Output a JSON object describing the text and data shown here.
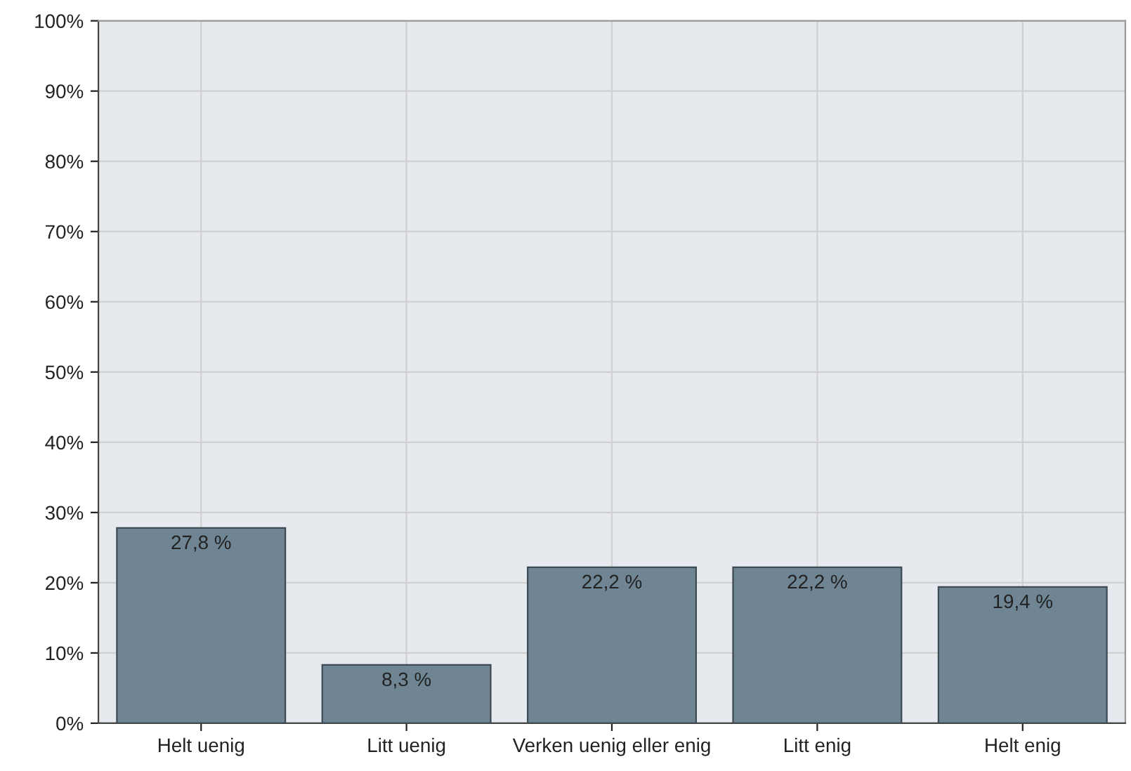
{
  "chart_data": {
    "type": "bar",
    "categories": [
      "Helt uenig",
      "Litt uenig",
      "Verken uenig eller enig",
      "Litt enig",
      "Helt enig"
    ],
    "values": [
      27.8,
      8.3,
      22.2,
      22.2,
      19.4
    ],
    "value_labels": [
      "27,8 %",
      "8,3 %",
      "22,2 %",
      "22,2 %",
      "19,4 %"
    ],
    "color": "#6f8593",
    "ylim": [
      0,
      100
    ],
    "yticks": [
      {
        "value": 0,
        "label": "0%"
      },
      {
        "value": 10,
        "label": "10%"
      },
      {
        "value": 20,
        "label": "20%"
      },
      {
        "value": 30,
        "label": "30%"
      },
      {
        "value": 40,
        "label": "40%"
      },
      {
        "value": 50,
        "label": "50%"
      },
      {
        "value": 60,
        "label": "60%"
      },
      {
        "value": 70,
        "label": "70%"
      },
      {
        "value": 80,
        "label": "80%"
      },
      {
        "value": 90,
        "label": "90%"
      },
      {
        "value": 100,
        "label": "100%"
      }
    ],
    "grid": true
  }
}
